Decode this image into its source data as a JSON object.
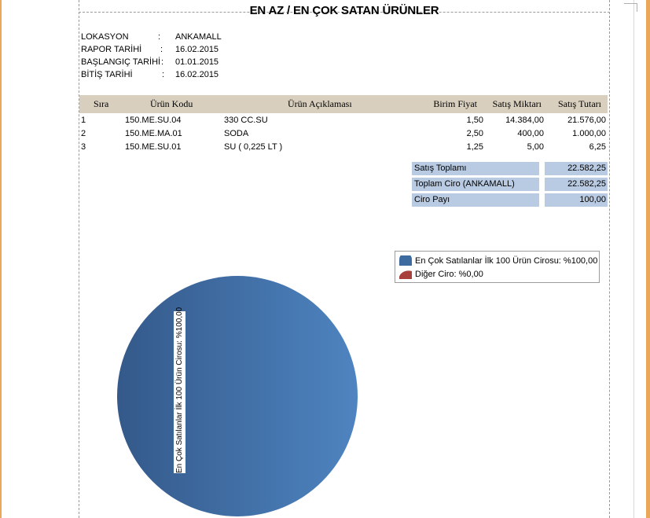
{
  "report": {
    "title": "EN AZ / EN ÇOK SATAN ÜRÜNLER",
    "meta": [
      {
        "key": "LOKASYON",
        "sep": ":",
        "value": "ANKAMALL"
      },
      {
        "key": "RAPOR TARİHİ",
        "sep": ":",
        "value": "16.02.2015"
      },
      {
        "key": "BAŞLANGIÇ TARİHİ",
        "sep": ":",
        "value": "01.01.2015"
      },
      {
        "key": "BİTİŞ TARİHİ",
        "sep": ":",
        "value": "16.02.2015"
      }
    ]
  },
  "table": {
    "headers": [
      "Sıra",
      "Ürün Kodu",
      "Ürün Açıklaması",
      "Birim Fiyat",
      "Satış Miktarı",
      "Satış Tutarı"
    ],
    "rows": [
      {
        "sira": "1",
        "kod": "150.ME.SU.04",
        "aciklama": "330 CC.SU",
        "fiyat": "1,50",
        "miktar": "14.384,00",
        "tutar": "21.576,00"
      },
      {
        "sira": "2",
        "kod": "150.ME.MA.01",
        "aciklama": "SODA",
        "fiyat": "2,50",
        "miktar": "400,00",
        "tutar": "1.000,00"
      },
      {
        "sira": "3",
        "kod": "150.ME.SU.01",
        "aciklama": "SU ( 0,225 LT )",
        "fiyat": "1,25",
        "miktar": "5,00",
        "tutar": "6,25"
      }
    ]
  },
  "summary": [
    {
      "label": "Satış Toplamı",
      "value": "22.582,25"
    },
    {
      "label": "Toplam Ciro (ANKAMALL)",
      "value": "22.582,25"
    },
    {
      "label": "Ciro Payı",
      "value": "100,00"
    }
  ],
  "pie": {
    "colors": {
      "main": "#3d6a9f",
      "main_light": "#4d82bd",
      "other": "#a8413b"
    },
    "legend": [
      {
        "label": "En Çok Satılanlar İlk 100 Ürün Cirosu: %100,00",
        "icon": "blue-pie-icon"
      },
      {
        "label": "Diğer Ciro: %0,00",
        "icon": "red-pie-icon"
      }
    ],
    "slice_label": "En Çok Satılanlar İlk 100 Ürün Cirosu: %100,00"
  },
  "chart_data": {
    "type": "pie",
    "categories": [
      "En Çok Satılanlar İlk 100 Ürün Cirosu",
      "Diğer Ciro"
    ],
    "values": [
      100.0,
      0.0
    ],
    "legend": "top-right"
  }
}
